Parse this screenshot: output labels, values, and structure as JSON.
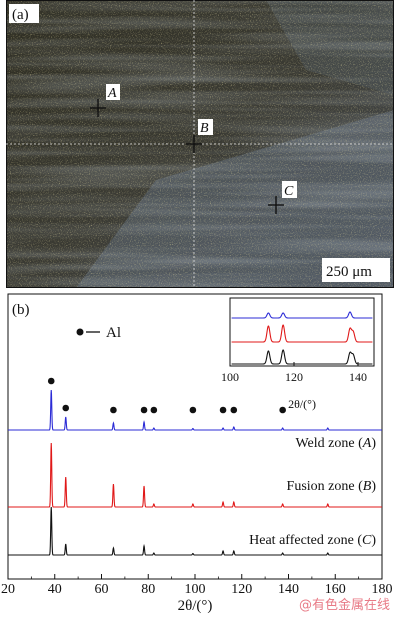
{
  "panel_a": {
    "label": "(a)",
    "markers": [
      {
        "id": "A",
        "label": "A"
      },
      {
        "id": "B",
        "label": "B"
      },
      {
        "id": "C",
        "label": "C"
      }
    ],
    "scale_bar": "250 μm"
  },
  "panel_b": {
    "label": "(b)",
    "legend": {
      "marker": "●",
      "label": "Al"
    },
    "curve_labels": [
      {
        "text": "Weld zone (",
        "italic": "A",
        "close": ")",
        "color": "#2b2bd6"
      },
      {
        "text": "Fusion zone (",
        "italic": "B",
        "close": ")",
        "color": "#e01818"
      },
      {
        "text": "Heat affected zone (",
        "italic": "C",
        "close": ")",
        "color": "#111111"
      }
    ],
    "xlabel": "2θ/(°)",
    "inset_xlabel": "2θ/(°)"
  },
  "watermark": "@有色金属在线",
  "chart_data": [
    {
      "type": "line",
      "title": "",
      "xlabel": "2θ/(°)",
      "ylabel": "",
      "xlim": [
        20,
        180
      ],
      "xticks": [
        20,
        40,
        60,
        80,
        100,
        120,
        140,
        160,
        180
      ],
      "grid": false,
      "legend_placement": "top-left",
      "peak_markers": [
        38.5,
        44.7,
        65.1,
        78.2,
        82.4,
        99.1,
        112.0,
        116.6,
        137.5
      ],
      "series": [
        {
          "name": "Weld zone (A)",
          "color": "#2b2bd6",
          "peaks": [
            {
              "x": 38.5,
              "h": 40
            },
            {
              "x": 44.7,
              "h": 13
            },
            {
              "x": 65.1,
              "h": 7
            },
            {
              "x": 78.2,
              "h": 8
            },
            {
              "x": 82.4,
              "h": 2
            },
            {
              "x": 99.1,
              "h": 1.5
            },
            {
              "x": 112.0,
              "h": 2
            },
            {
              "x": 116.6,
              "h": 3
            },
            {
              "x": 137.5,
              "h": 2
            },
            {
              "x": 156.8,
              "h": 2
            }
          ]
        },
        {
          "name": "Fusion zone (B)",
          "color": "#e01818",
          "peaks": [
            {
              "x": 38.5,
              "h": 64
            },
            {
              "x": 44.7,
              "h": 30
            },
            {
              "x": 65.1,
              "h": 23
            },
            {
              "x": 78.2,
              "h": 21
            },
            {
              "x": 82.4,
              "h": 3
            },
            {
              "x": 99.1,
              "h": 3
            },
            {
              "x": 112.0,
              "h": 5
            },
            {
              "x": 116.6,
              "h": 5
            },
            {
              "x": 137.5,
              "h": 3
            },
            {
              "x": 156.8,
              "h": 3
            }
          ]
        },
        {
          "name": "Heat affected zone (C)",
          "color": "#111111",
          "peaks": [
            {
              "x": 38.5,
              "h": 48
            },
            {
              "x": 44.7,
              "h": 11
            },
            {
              "x": 65.1,
              "h": 7
            },
            {
              "x": 78.2,
              "h": 9
            },
            {
              "x": 82.4,
              "h": 2
            },
            {
              "x": 99.1,
              "h": 1.5
            },
            {
              "x": 112.0,
              "h": 4
            },
            {
              "x": 116.6,
              "h": 4
            },
            {
              "x": 137.5,
              "h": 2
            },
            {
              "x": 156.8,
              "h": 2
            }
          ]
        }
      ]
    },
    {
      "type": "line",
      "title": "",
      "xlabel": "2θ/(°)",
      "xlim": [
        100,
        145
      ],
      "xticks": [
        100,
        120,
        140
      ],
      "series": [
        {
          "name": "Weld zone (A)",
          "color": "#2b2bd6",
          "peaks": [
            {
              "x": 112.0,
              "h": 5
            },
            {
              "x": 116.6,
              "h": 5
            },
            {
              "x": 137.5,
              "h": 6
            }
          ]
        },
        {
          "name": "Fusion zone (B)",
          "color": "#e01818",
          "peaks": [
            {
              "x": 112.0,
              "h": 16
            },
            {
              "x": 116.6,
              "h": 17
            },
            {
              "x": 137.5,
              "h": 13
            },
            {
              "x": 138.5,
              "h": 10
            }
          ]
        },
        {
          "name": "Heat affected zone (C)",
          "color": "#111111",
          "peaks": [
            {
              "x": 112.0,
              "h": 13
            },
            {
              "x": 116.6,
              "h": 14
            },
            {
              "x": 137.5,
              "h": 11
            },
            {
              "x": 138.5,
              "h": 9
            }
          ]
        }
      ]
    }
  ]
}
